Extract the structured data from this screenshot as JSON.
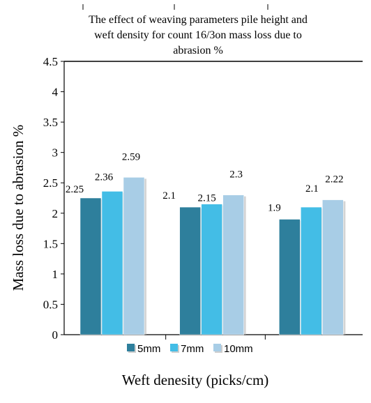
{
  "chart_data": {
    "type": "bar",
    "title_lines": [
      "The effect of weaving parameters pile height and",
      "weft density for count 16/3on mass loss due to",
      "abrasion %"
    ],
    "xlabel": "Weft denesity (picks/cm)",
    "ylabel": "Mass loss due to abrasion %",
    "ylim": [
      0,
      4.5
    ],
    "yticks": [
      "0",
      "0.5",
      "1",
      "1.5",
      "2",
      "2.5",
      "3",
      "3.5",
      "4",
      "4.5"
    ],
    "categories": [
      "",
      "",
      ""
    ],
    "series": [
      {
        "name": "5mm",
        "values": [
          2.25,
          2.1,
          1.9
        ],
        "labels": [
          "2.25",
          "2.1",
          "1.9"
        ]
      },
      {
        "name": "7mm",
        "values": [
          2.36,
          2.15,
          2.1
        ],
        "labels": [
          "2.36",
          "2.15",
          "2.1"
        ]
      },
      {
        "name": "10mm",
        "values": [
          2.59,
          2.3,
          2.22
        ],
        "labels": [
          "2.59",
          "2.3",
          "2.22"
        ]
      }
    ],
    "legend_position": "bottom",
    "grid": false
  },
  "colors": {
    "5mm": "#2e7f9c",
    "7mm": "#43bde6",
    "10mm": "#a8cde6",
    "axis": "#000000",
    "shadow": "#b8b8b8"
  }
}
